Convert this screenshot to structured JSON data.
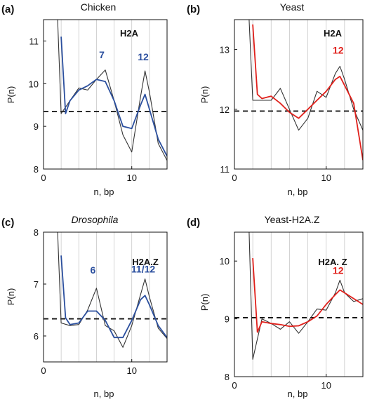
{
  "chart_data": [
    {
      "panel": "(a)",
      "title": "Chicken",
      "type": "line",
      "xlabel": "n, bp",
      "ylabel": "P(n)",
      "xlim": [
        0,
        14
      ],
      "ylim": [
        8,
        11.5
      ],
      "xticks": [
        0,
        10
      ],
      "yticks": [
        8,
        9,
        10,
        11
      ],
      "vlines": [
        2,
        4,
        6,
        8,
        10,
        12
      ],
      "threshold": 9.35,
      "box_label": "H2A",
      "annotations": [
        {
          "text": "7",
          "x": 6.6,
          "y": 10.6,
          "color": "#2b4f9e"
        },
        {
          "text": "12",
          "x": 11.3,
          "y": 10.55,
          "color": "#2b4f9e"
        }
      ],
      "series": [
        {
          "color": "#333333",
          "x": [
            1.6,
            2.0,
            3.0,
            4.0,
            5.0,
            6.0,
            7.0,
            8.0,
            9.0,
            10.0,
            11.0,
            11.5,
            12.0,
            13.0,
            14.0
          ],
          "y": [
            11.5,
            9.3,
            9.6,
            9.9,
            9.85,
            10.1,
            10.32,
            9.6,
            8.8,
            8.4,
            9.7,
            10.3,
            9.8,
            8.6,
            8.2
          ]
        },
        {
          "color": "#2b4f9e",
          "x": [
            2.0,
            2.5,
            3.0,
            4.0,
            5.0,
            6.0,
            7.0,
            8.0,
            9.0,
            10.0,
            11.0,
            11.5,
            12.0,
            13.0,
            14.0
          ],
          "y": [
            11.1,
            9.3,
            9.6,
            9.85,
            9.95,
            10.1,
            10.05,
            9.6,
            9.0,
            8.95,
            9.5,
            9.75,
            9.4,
            8.7,
            8.3
          ]
        }
      ]
    },
    {
      "panel": "(b)",
      "title": "Yeast",
      "type": "line",
      "xlabel": "n, bp",
      "ylabel": "P(n)",
      "xlim": [
        0,
        14
      ],
      "ylim": [
        11,
        13.5
      ],
      "xticks": [
        0,
        10
      ],
      "yticks": [
        11,
        12,
        13
      ],
      "vlines": [
        2,
        4,
        6,
        8,
        10,
        12
      ],
      "threshold": 11.97,
      "box_label": "H2A",
      "annotations": [
        {
          "text": "12",
          "x": 11.3,
          "y": 12.93,
          "color": "#e0201b"
        }
      ],
      "series": [
        {
          "color": "#333333",
          "x": [
            1.6,
            2.0,
            3.0,
            4.0,
            5.0,
            6.0,
            7.0,
            8.0,
            9.0,
            10.0,
            11.0,
            11.5,
            12.0,
            13.0,
            14.0
          ],
          "y": [
            13.5,
            12.15,
            12.15,
            12.15,
            12.35,
            12.0,
            11.65,
            11.85,
            12.3,
            12.2,
            12.6,
            12.72,
            12.5,
            12.0,
            11.65
          ]
        },
        {
          "color": "#e0201b",
          "x": [
            2.0,
            2.5,
            3.0,
            4.0,
            5.0,
            6.0,
            7.0,
            8.0,
            9.0,
            10.0,
            11.0,
            11.5,
            12.0,
            13.0,
            14.0
          ],
          "y": [
            13.42,
            12.25,
            12.18,
            12.22,
            12.1,
            11.95,
            11.85,
            12.0,
            12.15,
            12.3,
            12.5,
            12.55,
            12.4,
            12.1,
            11.15
          ]
        }
      ]
    },
    {
      "panel": "(c)",
      "title": "Drosophila",
      "type": "line",
      "xlabel": "n, bp",
      "ylabel": "P(n)",
      "xlim": [
        0,
        14
      ],
      "ylim": [
        5.5,
        8
      ],
      "xticks": [
        0,
        10
      ],
      "yticks": [
        6,
        7,
        8
      ],
      "vlines": [
        2,
        4,
        6,
        8,
        10,
        12
      ],
      "threshold": 6.33,
      "box_label": "H2A.Z",
      "annotations": [
        {
          "text": "6",
          "x": 5.6,
          "y": 7.2,
          "color": "#2b4f9e"
        },
        {
          "text": "11/12",
          "x": 11.3,
          "y": 7.22,
          "color": "#2b4f9e"
        }
      ],
      "series": [
        {
          "color": "#333333",
          "x": [
            1.6,
            2.0,
            3.0,
            4.0,
            5.0,
            6.0,
            7.0,
            8.0,
            9.0,
            10.0,
            11.0,
            11.5,
            12.0,
            13.0,
            14.0
          ],
          "y": [
            8.0,
            6.25,
            6.2,
            6.22,
            6.5,
            6.92,
            6.2,
            6.1,
            5.78,
            6.2,
            6.8,
            7.1,
            6.75,
            6.15,
            5.95
          ]
        },
        {
          "color": "#2b4f9e",
          "x": [
            2.0,
            2.5,
            3.0,
            4.0,
            5.0,
            6.0,
            7.0,
            8.0,
            9.0,
            10.0,
            11.0,
            11.5,
            12.0,
            13.0,
            14.0
          ],
          "y": [
            7.55,
            6.35,
            6.22,
            6.25,
            6.48,
            6.48,
            6.3,
            5.97,
            5.97,
            6.3,
            6.7,
            6.78,
            6.6,
            6.2,
            5.97
          ]
        }
      ]
    },
    {
      "panel": "(d)",
      "title": "Yeast-H2A.Z",
      "type": "line",
      "xlabel": "n, bp",
      "ylabel": "P(n)",
      "xlim": [
        0,
        14
      ],
      "ylim": [
        8,
        10.5
      ],
      "xticks": [
        0,
        10
      ],
      "yticks": [
        8,
        9,
        10
      ],
      "vlines": [
        2,
        4,
        6,
        8,
        10,
        12
      ],
      "threshold": 9.02,
      "box_label": "H2A. Z",
      "annotations": [
        {
          "text": "12",
          "x": 11.3,
          "y": 9.78,
          "color": "#e0201b"
        }
      ],
      "series": [
        {
          "color": "#333333",
          "x": [
            1.6,
            2.0,
            3.0,
            4.0,
            5.0,
            6.0,
            7.0,
            8.0,
            9.0,
            10.0,
            11.0,
            11.5,
            12.0,
            13.0,
            14.0
          ],
          "y": [
            10.5,
            8.3,
            9.0,
            8.92,
            8.82,
            8.95,
            8.75,
            8.95,
            9.17,
            9.15,
            9.45,
            9.67,
            9.45,
            9.3,
            9.35
          ]
        },
        {
          "color": "#e0201b",
          "x": [
            2.0,
            2.5,
            3.0,
            4.0,
            5.0,
            6.0,
            7.0,
            8.0,
            9.0,
            10.0,
            11.0,
            11.5,
            12.0,
            13.0,
            14.0
          ],
          "y": [
            10.05,
            8.77,
            8.95,
            8.92,
            8.9,
            8.87,
            8.88,
            8.95,
            9.05,
            9.25,
            9.42,
            9.5,
            9.45,
            9.35,
            9.25
          ]
        }
      ]
    }
  ]
}
